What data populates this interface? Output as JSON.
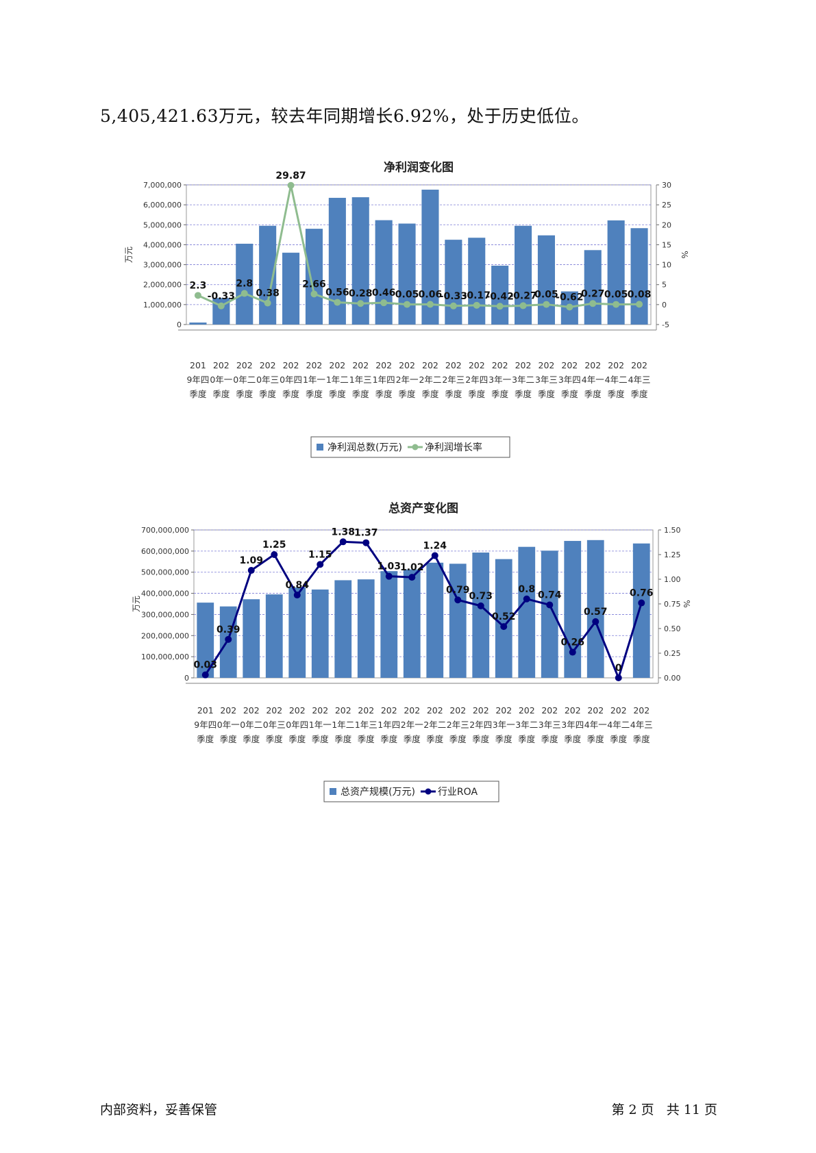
{
  "intro_text": "5,405,421.63万元，较去年同期增长6.92%，处于历史低位。",
  "footer": {
    "left": "内部资料，妥善保管",
    "right": "第 2 页   共 11 页"
  },
  "chart_data": [
    {
      "type": "bar",
      "title": "净利润变化图",
      "ylabel": "万元",
      "y2label": "%",
      "categories": [
        "2019年四季度",
        "2020年一季度",
        "2020年二季度",
        "2020年三季度",
        "2020年四季度",
        "2021年一季度",
        "2021年二季度",
        "2021年三季度",
        "2021年四季度",
        "2022年一季度",
        "2022年二季度",
        "2022年三季度",
        "2022年四季度",
        "2023年一季度",
        "2023年二季度",
        "2023年三季度",
        "2023年四季度",
        "2024年一季度",
        "2024年二季度",
        "2024年三季度"
      ],
      "ylim": [
        0,
        7000000
      ],
      "yticks": [
        "0",
        "1,000,000",
        "2,000,000",
        "3,000,000",
        "4,000,000",
        "5,000,000",
        "6,000,000",
        "7,000,000"
      ],
      "y2lim": [
        -5,
        30
      ],
      "y2ticks": [
        "-5",
        "0",
        "5",
        "10",
        "15",
        "20",
        "25",
        "30"
      ],
      "series": [
        {
          "name": "净利润总数(万元)",
          "type": "bar",
          "color": "#4f81bd",
          "values": [
            100000,
            1330000,
            4050000,
            4950000,
            3600000,
            4800000,
            6350000,
            6380000,
            5230000,
            5060000,
            6760000,
            4250000,
            4350000,
            2950000,
            4950000,
            4470000,
            1660000,
            3730000,
            5220000,
            4830000
          ]
        },
        {
          "name": "净利润增长率",
          "type": "line",
          "axis": "right",
          "color": "#8fbc8f",
          "values": [
            2.3,
            -0.33,
            2.8,
            0.38,
            29.87,
            2.66,
            0.56,
            0.28,
            0.46,
            0.05,
            0.06,
            -0.33,
            -0.17,
            -0.42,
            -0.27,
            0.05,
            -0.62,
            0.27,
            0.05,
            0.08
          ],
          "labels": [
            "2.3",
            "-0.33",
            "2.8",
            "0.38",
            "29.87",
            "2.66",
            "0.56",
            "0.28",
            "0.46",
            "0.05",
            "0.06",
            "-0.33",
            "-0.17",
            "-0.42",
            "-0.27",
            "0.05",
            "-0.62",
            "0.27",
            "0.05",
            "0.08"
          ]
        }
      ],
      "grid": true,
      "legend": "bottom"
    },
    {
      "type": "bar",
      "title": "总资产变化图",
      "ylabel": "万元",
      "y2label": "%",
      "categories": [
        "2019年四季度",
        "2020年一季度",
        "2020年二季度",
        "2020年三季度",
        "2020年四季度",
        "2021年一季度",
        "2021年二季度",
        "2021年三季度",
        "2021年四季度",
        "2022年一季度",
        "2022年二季度",
        "2022年三季度",
        "2022年四季度",
        "2023年一季度",
        "2023年二季度",
        "2023年三季度",
        "2023年四季度",
        "2024年一季度",
        "2024年二季度",
        "2024年三季度"
      ],
      "ylim": [
        0,
        700000000
      ],
      "yticks": [
        "0",
        "100,000,000",
        "200,000,000",
        "300,000,000",
        "400,000,000",
        "500,000,000",
        "600,000,000",
        "700,000,000"
      ],
      "y2lim": [
        0,
        1.5
      ],
      "y2ticks": [
        "0.00",
        "0.25",
        "0.50",
        "0.75",
        "1.00",
        "1.25",
        "1.50"
      ],
      "series": [
        {
          "name": "总资产规模(万元)",
          "type": "bar",
          "color": "#4f81bd",
          "values": [
            356000000,
            338000000,
            372000000,
            395000000,
            428000000,
            418000000,
            462000000,
            466000000,
            505000000,
            513000000,
            545000000,
            540000000,
            593000000,
            562000000,
            620000000,
            602000000,
            648000000,
            652000000,
            0,
            636000000
          ]
        },
        {
          "name": "行业ROA",
          "type": "line",
          "axis": "right",
          "color": "#000080",
          "values": [
            0.03,
            0.39,
            1.09,
            1.25,
            0.84,
            1.15,
            1.38,
            1.37,
            1.03,
            1.02,
            1.24,
            0.79,
            0.73,
            0.52,
            0.8,
            0.74,
            0.26,
            0.57,
            0,
            0.76
          ],
          "labels": [
            "0.03",
            "0.39",
            "1.09",
            "1.25",
            "0.84",
            "1.15",
            "1.38",
            "1.37",
            "1.03",
            "1.02",
            "1.24",
            "0.79",
            "0.73",
            "0.52",
            "0.8",
            "0.74",
            "0.26",
            "0.57",
            "0",
            "0.76"
          ]
        }
      ],
      "grid": true,
      "legend": "bottom"
    }
  ]
}
